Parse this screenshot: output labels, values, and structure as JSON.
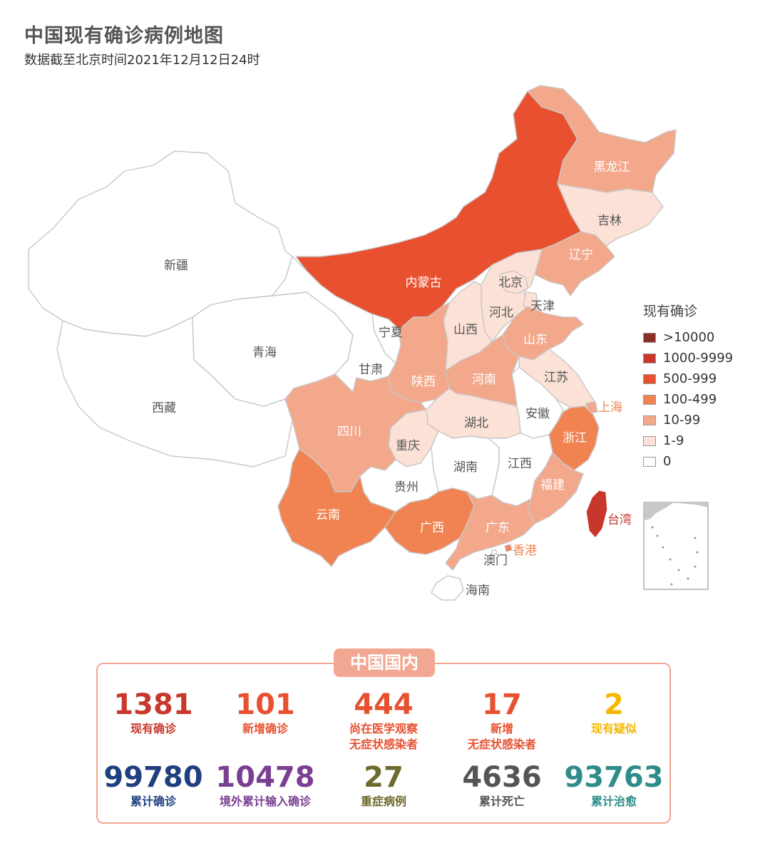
{
  "header": {
    "title": "中国现有确诊病例地图",
    "subtitle": "数据截至北京时间2021年12月12日24时"
  },
  "legend": {
    "title": "现有确诊",
    "items": [
      {
        "label": ">10000",
        "color": "#8b3025"
      },
      {
        "label": "1000-9999",
        "color": "#c8372b"
      },
      {
        "label": "500-999",
        "color": "#e8502f"
      },
      {
        "label": "100-499",
        "color": "#f08351"
      },
      {
        "label": "10-99",
        "color": "#f3a88c"
      },
      {
        "label": "1-9",
        "color": "#fbe1d6"
      },
      {
        "label": "0",
        "color": "#ffffff"
      }
    ]
  },
  "map": {
    "regions": {
      "xinjiang": {
        "name": "新疆",
        "color": "#ffffff"
      },
      "xizang": {
        "name": "西藏",
        "color": "#ffffff"
      },
      "qinghai": {
        "name": "青海",
        "color": "#ffffff"
      },
      "gansu": {
        "name": "甘肃",
        "color": "#ffffff"
      },
      "ningxia": {
        "name": "宁夏",
        "color": "#ffffff"
      },
      "neimenggu": {
        "name": "内蒙古",
        "color": "#e8502f"
      },
      "heilongjiang": {
        "name": "黑龙江",
        "color": "#f3a88c"
      },
      "jilin": {
        "name": "吉林",
        "color": "#fbe1d6"
      },
      "liaoning": {
        "name": "辽宁",
        "color": "#f3a88c"
      },
      "beijing": {
        "name": "北京",
        "color": "#fbe1d6"
      },
      "tianjin": {
        "name": "天津",
        "color": "#fbe1d6"
      },
      "hebei": {
        "name": "河北",
        "color": "#fbe1d6"
      },
      "shanxi": {
        "name": "山西",
        "color": "#fbe1d6"
      },
      "shandong": {
        "name": "山东",
        "color": "#f3a88c"
      },
      "shaanxi": {
        "name": "陕西",
        "color": "#f3a88c"
      },
      "henan": {
        "name": "河南",
        "color": "#f3a88c"
      },
      "jiangsu": {
        "name": "江苏",
        "color": "#fbe1d6"
      },
      "shanghai": {
        "name": "上海",
        "color": "#f3a88c"
      },
      "anhui": {
        "name": "安徽",
        "color": "#ffffff"
      },
      "hubei": {
        "name": "湖北",
        "color": "#fbe1d6"
      },
      "sichuan": {
        "name": "四川",
        "color": "#f3a88c"
      },
      "chongqing": {
        "name": "重庆",
        "color": "#fbe1d6"
      },
      "zhejiang": {
        "name": "浙江",
        "color": "#f08351"
      },
      "hunan": {
        "name": "湖南",
        "color": "#ffffff"
      },
      "jiangxi": {
        "name": "江西",
        "color": "#ffffff"
      },
      "guizhou": {
        "name": "贵州",
        "color": "#ffffff"
      },
      "fujian": {
        "name": "福建",
        "color": "#f3a88c"
      },
      "yunnan": {
        "name": "云南",
        "color": "#f08351"
      },
      "guangxi": {
        "name": "广西",
        "color": "#f08351"
      },
      "guangdong": {
        "name": "广东",
        "color": "#f3a88c"
      },
      "xianggang": {
        "name": "香港",
        "color": "#f08351"
      },
      "aomen": {
        "name": "澳门",
        "color": "#ffffff"
      },
      "hainan": {
        "name": "海南",
        "color": "#ffffff"
      },
      "taiwan": {
        "name": "台湾",
        "color": "#c8372b"
      }
    }
  },
  "stats": {
    "badge": "中国国内",
    "items": [
      {
        "value": "1381",
        "label": "现有确诊",
        "color": "#c8372b"
      },
      {
        "value": "101",
        "label": "新增确诊",
        "color": "#e8502f"
      },
      {
        "value": "444",
        "label": "尚在医学观察\n无症状感染者",
        "color": "#e8502f"
      },
      {
        "value": "17",
        "label": "新增\n无症状感染者",
        "color": "#e8502f"
      },
      {
        "value": "2",
        "label": "现有疑似",
        "color": "#f5b800"
      },
      {
        "value": "99780",
        "label": "累计确诊",
        "color": "#1f3f7f"
      },
      {
        "value": "10478",
        "label": "境外累计输入确诊",
        "color": "#7a3f92"
      },
      {
        "value": "27",
        "label": "重症病例",
        "color": "#6e6a2c"
      },
      {
        "value": "4636",
        "label": "累计死亡",
        "color": "#555555"
      },
      {
        "value": "93763",
        "label": "累计治愈",
        "color": "#2f8c89"
      }
    ]
  }
}
